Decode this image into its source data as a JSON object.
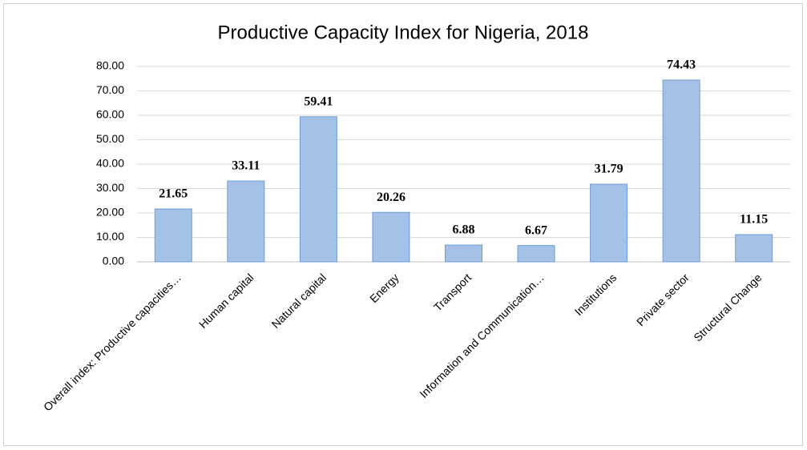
{
  "chart_data": {
    "type": "bar",
    "title": "Productive Capacity Index for Nigeria, 2018",
    "categories": [
      "Overall index: Productive capacities…",
      "Human capital",
      "Natural capital",
      "Energy",
      "Transport",
      "Information and Communication…",
      "Institutions",
      "Private sector",
      "Structural Change"
    ],
    "values": [
      21.65,
      33.11,
      59.41,
      20.26,
      6.88,
      6.67,
      31.79,
      74.43,
      11.15
    ],
    "color": "#a4c2e8",
    "ylim": [
      0,
      80
    ],
    "yticks": [
      {
        "value": 0,
        "label": "0.00"
      },
      {
        "value": 10,
        "label": "10.00"
      },
      {
        "value": 20,
        "label": "20.00"
      },
      {
        "value": 30,
        "label": "30.00"
      },
      {
        "value": 40,
        "label": "40.00"
      },
      {
        "value": 50,
        "label": "50.00"
      },
      {
        "value": 60,
        "label": "60.00"
      },
      {
        "value": 70,
        "label": "70.00"
      },
      {
        "value": 80,
        "label": "80.00"
      }
    ],
    "grid": true
  }
}
